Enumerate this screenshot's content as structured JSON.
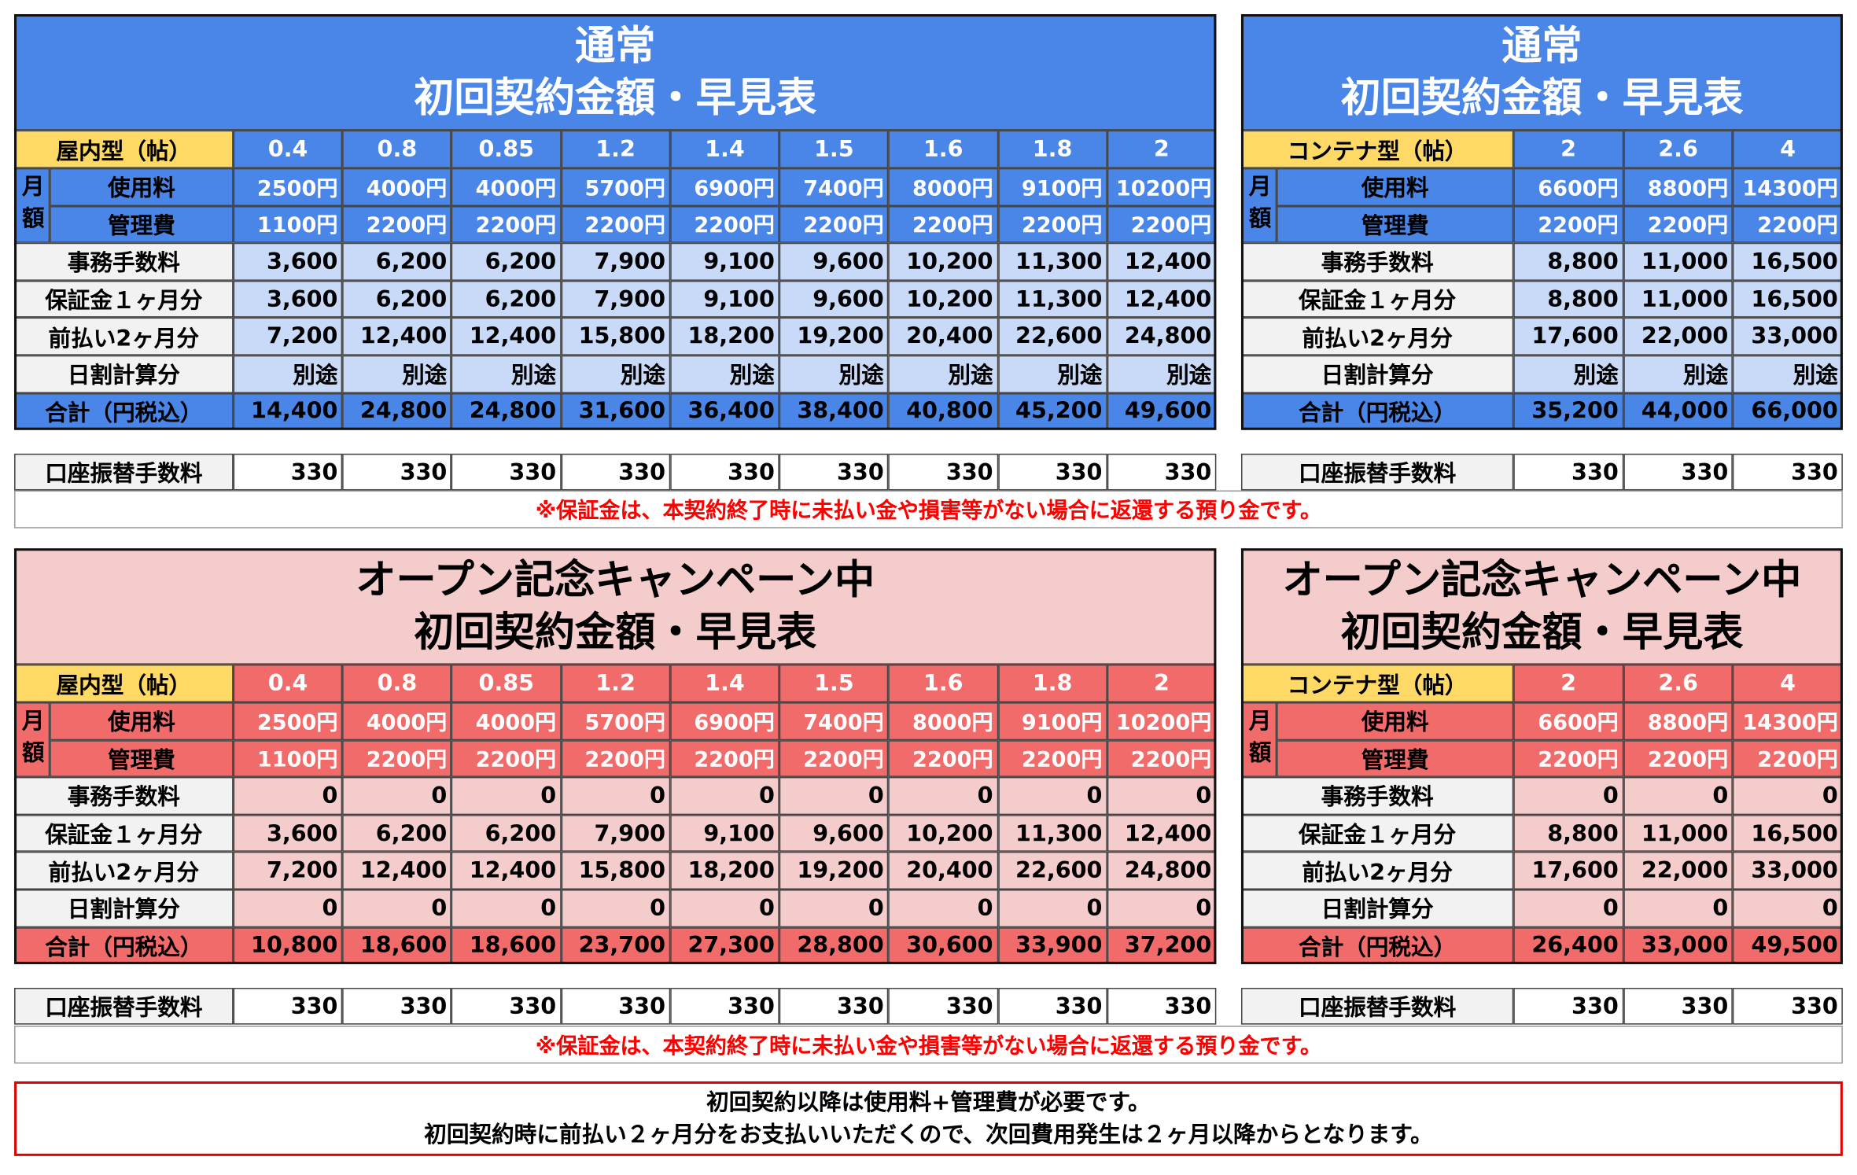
{
  "tables": [
    {
      "title": [
        "通常",
        "初回契約金額・早見表"
      ],
      "type_label": "屋内型（帖）",
      "monthly": "月額",
      "sizes": [
        "0.4",
        "0.8",
        "0.85",
        "1.2",
        "1.4",
        "1.5",
        "1.6",
        "1.8",
        "2"
      ],
      "rows": [
        {
          "label": "使用料",
          "cells": [
            "2500円",
            "4000円",
            "4000円",
            "5700円",
            "6900円",
            "7400円",
            "8000円",
            "9100円",
            "10200円"
          ]
        },
        {
          "label": "管理費",
          "cells": [
            "1100円",
            "2200円",
            "2200円",
            "2200円",
            "2200円",
            "2200円",
            "2200円",
            "2200円",
            "2200円"
          ]
        },
        {
          "label": "事務手数料",
          "cells": [
            "3,600",
            "6,200",
            "6,200",
            "7,900",
            "9,100",
            "9,600",
            "10,200",
            "11,300",
            "12,400"
          ]
        },
        {
          "label": "保証金１ヶ月分",
          "cells": [
            "3,600",
            "6,200",
            "6,200",
            "7,900",
            "9,100",
            "9,600",
            "10,200",
            "11,300",
            "12,400"
          ]
        },
        {
          "label": "前払い2ヶ月分",
          "cells": [
            "7,200",
            "12,400",
            "12,400",
            "15,800",
            "18,200",
            "19,200",
            "20,400",
            "22,600",
            "24,800"
          ]
        },
        {
          "label": "日割計算分",
          "cells": [
            "別途",
            "別途",
            "別途",
            "別途",
            "別途",
            "別途",
            "別途",
            "別途",
            "別途"
          ]
        },
        {
          "label": "合計（円税込）",
          "cells": [
            "14,400",
            "24,800",
            "24,800",
            "31,600",
            "36,400",
            "38,400",
            "40,800",
            "45,200",
            "49,600"
          ]
        }
      ],
      "fee": {
        "label": "口座振替手数料",
        "cells": [
          "330",
          "330",
          "330",
          "330",
          "330",
          "330",
          "330",
          "330",
          "330"
        ]
      },
      "palette": {
        "title_bg": "#4a86e8",
        "title_text": "#ffffff",
        "strong_bg": "#4a86e8",
        "strong_text": "#ffffff",
        "total_text": "#000000",
        "body_bg": "#c9daf8"
      }
    },
    {
      "title": [
        "通常",
        "初回契約金額・早見表"
      ],
      "type_label": "コンテナ型（帖）",
      "monthly": "月額",
      "sizes": [
        "2",
        "2.6",
        "4"
      ],
      "rows": [
        {
          "label": "使用料",
          "cells": [
            "6600円",
            "8800円",
            "14300円"
          ]
        },
        {
          "label": "管理費",
          "cells": [
            "2200円",
            "2200円",
            "2200円"
          ]
        },
        {
          "label": "事務手数料",
          "cells": [
            "8,800",
            "11,000",
            "16,500"
          ]
        },
        {
          "label": "保証金１ヶ月分",
          "cells": [
            "8,800",
            "11,000",
            "16,500"
          ]
        },
        {
          "label": "前払い2ヶ月分",
          "cells": [
            "17,600",
            "22,000",
            "33,000"
          ]
        },
        {
          "label": "日割計算分",
          "cells": [
            "別途",
            "別途",
            "別途"
          ]
        },
        {
          "label": "合計（円税込）",
          "cells": [
            "35,200",
            "44,000",
            "66,000"
          ]
        }
      ],
      "fee": {
        "label": "口座振替手数料",
        "cells": [
          "330",
          "330",
          "330"
        ]
      },
      "palette": {
        "title_bg": "#4a86e8",
        "title_text": "#ffffff",
        "strong_bg": "#4a86e8",
        "strong_text": "#ffffff",
        "total_text": "#000000",
        "body_bg": "#c9daf8"
      }
    },
    {
      "title": [
        "オープン記念キャンペーン中",
        "初回契約金額・早見表"
      ],
      "type_label": "屋内型（帖）",
      "monthly": "月額",
      "sizes": [
        "0.4",
        "0.8",
        "0.85",
        "1.2",
        "1.4",
        "1.5",
        "1.6",
        "1.8",
        "2"
      ],
      "rows": [
        {
          "label": "使用料",
          "cells": [
            "2500円",
            "4000円",
            "4000円",
            "5700円",
            "6900円",
            "7400円",
            "8000円",
            "9100円",
            "10200円"
          ]
        },
        {
          "label": "管理費",
          "cells": [
            "1100円",
            "2200円",
            "2200円",
            "2200円",
            "2200円",
            "2200円",
            "2200円",
            "2200円",
            "2200円"
          ]
        },
        {
          "label": "事務手数料",
          "cells": [
            "0",
            "0",
            "0",
            "0",
            "0",
            "0",
            "0",
            "0",
            "0"
          ]
        },
        {
          "label": "保証金１ヶ月分",
          "cells": [
            "3,600",
            "6,200",
            "6,200",
            "7,900",
            "9,100",
            "9,600",
            "10,200",
            "11,300",
            "12,400"
          ]
        },
        {
          "label": "前払い2ヶ月分",
          "cells": [
            "7,200",
            "12,400",
            "12,400",
            "15,800",
            "18,200",
            "19,200",
            "20,400",
            "22,600",
            "24,800"
          ]
        },
        {
          "label": "日割計算分",
          "cells": [
            "0",
            "0",
            "0",
            "0",
            "0",
            "0",
            "0",
            "0",
            "0"
          ]
        },
        {
          "label": "合計（円税込）",
          "cells": [
            "10,800",
            "18,600",
            "18,600",
            "23,700",
            "27,300",
            "28,800",
            "30,600",
            "33,900",
            "37,200"
          ]
        }
      ],
      "fee": {
        "label": "口座振替手数料",
        "cells": [
          "330",
          "330",
          "330",
          "330",
          "330",
          "330",
          "330",
          "330",
          "330"
        ]
      },
      "palette": {
        "title_bg": "#f4cccc",
        "title_text": "#000000",
        "strong_bg": "#f26b6b",
        "strong_text": "#ffffff",
        "total_text": "#000000",
        "body_bg": "#f4cccc"
      }
    },
    {
      "title": [
        "オープン記念キャンペーン中",
        "初回契約金額・早見表"
      ],
      "type_label": "コンテナ型（帖）",
      "monthly": "月額",
      "sizes": [
        "2",
        "2.6",
        "4"
      ],
      "rows": [
        {
          "label": "使用料",
          "cells": [
            "6600円",
            "8800円",
            "14300円"
          ]
        },
        {
          "label": "管理費",
          "cells": [
            "2200円",
            "2200円",
            "2200円"
          ]
        },
        {
          "label": "事務手数料",
          "cells": [
            "0",
            "0",
            "0"
          ]
        },
        {
          "label": "保証金１ヶ月分",
          "cells": [
            "8,800",
            "11,000",
            "16,500"
          ]
        },
        {
          "label": "前払い2ヶ月分",
          "cells": [
            "17,600",
            "22,000",
            "33,000"
          ]
        },
        {
          "label": "日割計算分",
          "cells": [
            "0",
            "0",
            "0"
          ]
        },
        {
          "label": "合計（円税込）",
          "cells": [
            "26,400",
            "33,000",
            "49,500"
          ]
        }
      ],
      "fee": {
        "label": "口座振替手数料",
        "cells": [
          "330",
          "330",
          "330"
        ]
      },
      "palette": {
        "title_bg": "#f4cccc",
        "title_text": "#000000",
        "strong_bg": "#f26b6b",
        "strong_text": "#ffffff",
        "total_text": "#000000",
        "body_bg": "#f4cccc"
      }
    }
  ],
  "notes": [
    "※保証金は、本契約終了時に未払い金や損害等がない場合に返還する預り金です。",
    "※保証金は、本契約終了時に未払い金や損害等がない場合に返還する預り金です。"
  ],
  "footer": [
    "初回契約以降は使用料+管理費が必要です。",
    "初回契約時に前払い２ヶ月分をお支払いいただくので、次回費用発生は２ヶ月以降からとなります。"
  ]
}
